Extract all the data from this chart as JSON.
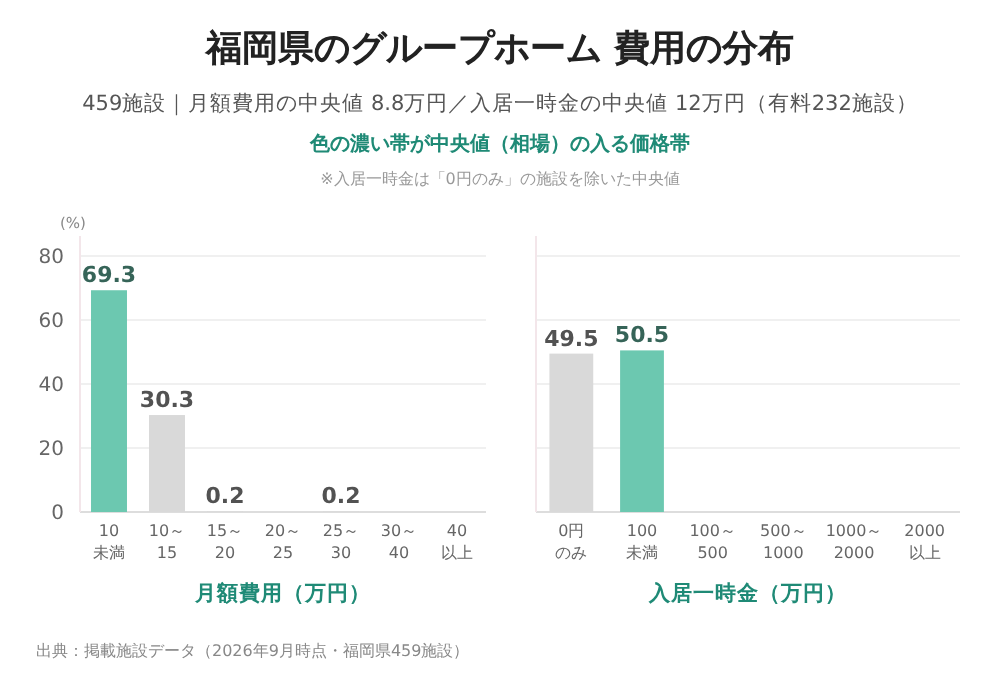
{
  "chart_data": [
    {
      "type": "bar",
      "title": "福岡県のグループホーム 費用の分布",
      "subtitle": "459施設｜月額費用の中央値 8.8万円／入居一時金の中央値 12万円（有料232施設）",
      "annotations": [
        "色の濃い帯が中央値（相場）の入る価格帯",
        "※入居一時金は「0円のみ」の施設を除いた中央値",
        "出典：掲載施設データ（2026年9月時点・福岡県459施設）"
      ],
      "ylabel": "(%)",
      "xlabel": "月額費用（万円）",
      "categories": [
        "10未満",
        "10～15",
        "15～20",
        "20～25",
        "25～30",
        "30～40",
        "40以上"
      ],
      "values": [
        69.3,
        30.3,
        0.2,
        0,
        0.2,
        0,
        0
      ],
      "value_labels": [
        "69.3",
        "30.3",
        "0.2",
        null,
        "0.2",
        null,
        null
      ],
      "colors": [
        "#6cc8b0",
        "#d9d9d9",
        "#d9d9d9",
        "#d9d9d9",
        "#d9d9d9",
        "#d9d9d9",
        "#d9d9d9"
      ],
      "ylim": [
        0,
        80
      ],
      "yticks": [
        0,
        20,
        40,
        60,
        80
      ],
      "grid": "y"
    },
    {
      "type": "bar",
      "xlabel": "入居一時金（万円）",
      "categories": [
        "0円のみ",
        "100未満",
        "100～500",
        "500～1000",
        "1000～2000",
        "2000以上"
      ],
      "values": [
        49.5,
        50.5,
        0,
        0,
        0,
        0
      ],
      "value_labels": [
        "49.5",
        "50.5",
        null,
        null,
        null,
        null
      ],
      "colors": [
        "#d9d9d9",
        "#6cc8b0",
        "#d9d9d9",
        "#d9d9d9",
        "#d9d9d9",
        "#d9d9d9"
      ],
      "ylim": [
        0,
        80
      ],
      "yticks": [
        0,
        20,
        40,
        60,
        80
      ],
      "grid": "y",
      "tick_labels": "x"
    }
  ]
}
